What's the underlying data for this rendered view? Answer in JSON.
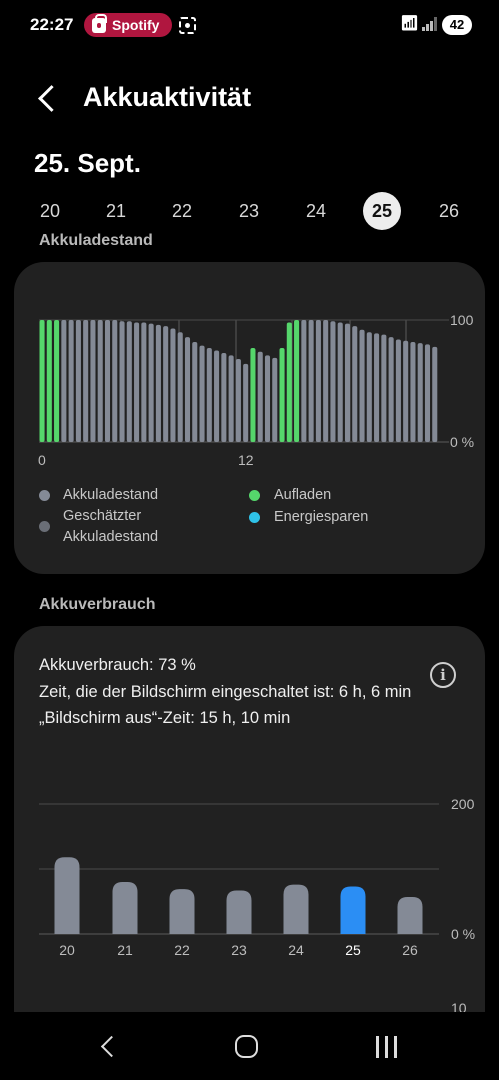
{
  "status_bar": {
    "time": "22:27",
    "app_pill": "Spotify",
    "battery": "42",
    "app_pill_color": "#b0163f"
  },
  "header": {
    "title": "Akkuaktivität",
    "back_icon": "chevron-left-icon"
  },
  "date_heading": "25. Sept.",
  "days": [
    {
      "label": "20",
      "selected": false
    },
    {
      "label": "21",
      "selected": false
    },
    {
      "label": "22",
      "selected": false
    },
    {
      "label": "23",
      "selected": false
    },
    {
      "label": "24",
      "selected": false
    },
    {
      "label": "25",
      "selected": true
    },
    {
      "label": "26",
      "selected": false
    }
  ],
  "charge_section": {
    "label": "Akkuladestand",
    "legend": [
      {
        "label": "Akkuladestand",
        "color": "#848a96"
      },
      {
        "label": "Aufladen",
        "color": "#55d66b"
      },
      {
        "label": "Geschätzter Akkuladestand",
        "color": "#6a6e76"
      },
      {
        "label": "Energiesparen",
        "color": "#2fc2e8"
      }
    ]
  },
  "usage_section": {
    "label": "Akkuverbrauch",
    "line1": "Akkuverbrauch: 73 %",
    "line2": "Zeit, die der Bildschirm eingeschaltet ist: 6 h, 6 min",
    "line3": "„Bildschirm aus“-Zeit: 15 h, 10 min",
    "info_icon": "info-icon"
  },
  "chart_data": [
    {
      "type": "bar",
      "title": "Akkuladestand",
      "x_tick_labels": [
        "0",
        "12"
      ],
      "y_tick_labels": [
        "100",
        "0 %"
      ],
      "ylim": [
        0,
        100
      ],
      "values": [
        100,
        100,
        100,
        100,
        100,
        100,
        100,
        100,
        100,
        100,
        100,
        99,
        99,
        98,
        98,
        97,
        96,
        95,
        93,
        90,
        86,
        82,
        79,
        77,
        75,
        73,
        71,
        68,
        64,
        77,
        74,
        71,
        69,
        77,
        98,
        100,
        100,
        100,
        100,
        100,
        99,
        98,
        97,
        95,
        92,
        90,
        89,
        88,
        86,
        84,
        83,
        82,
        81,
        80,
        78
      ],
      "charging": [
        1,
        1,
        1,
        0,
        0,
        0,
        0,
        0,
        0,
        0,
        0,
        0,
        0,
        0,
        0,
        0,
        0,
        0,
        0,
        0,
        0,
        0,
        0,
        0,
        0,
        0,
        0,
        0,
        0,
        1,
        0,
        0,
        0,
        1,
        1,
        1,
        0,
        0,
        0,
        0,
        0,
        0,
        0,
        0,
        0,
        0,
        0,
        0,
        0,
        0,
        0,
        0,
        0,
        0,
        0
      ],
      "grid": true
    },
    {
      "type": "bar",
      "title": "Akkuverbrauch",
      "categories": [
        "20",
        "21",
        "22",
        "23",
        "24",
        "25",
        "26"
      ],
      "values": [
        118,
        80,
        69,
        67,
        76,
        73,
        57
      ],
      "highlight_index": 5,
      "y_tick_labels": [
        "200",
        "0 %",
        "10"
      ],
      "ylim": [
        0,
        200
      ],
      "grid": true
    }
  ],
  "colors": {
    "background": "#000000",
    "card": "#212121",
    "bar_gray": "#848a96",
    "bar_green": "#55d66b",
    "bar_blue": "#2b8ef4",
    "selected_day_bg": "#ededed"
  },
  "nav_bar": {
    "back": "nav-back-icon",
    "home": "nav-home-icon",
    "recents": "nav-recents-icon"
  }
}
